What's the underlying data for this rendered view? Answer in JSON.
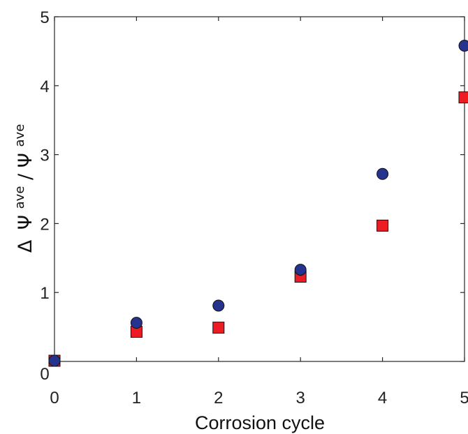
{
  "chart_data": {
    "type": "scatter",
    "x_ticks": [
      "0",
      "1",
      "2",
      "3",
      "4",
      "5"
    ],
    "y_ticks": [
      "0",
      "1",
      "2",
      "3",
      "4",
      "5"
    ],
    "xlim": [
      0,
      5
    ],
    "ylim": [
      0,
      5
    ],
    "grid": false,
    "xlabel": "Corrosion cycle",
    "ylabel": {
      "delta": "Δ",
      "symbol_1": "Ψ",
      "sup_1": "ave",
      "separator": " / ",
      "symbol_2": "Ψ",
      "sup_2": "ave"
    },
    "series": [
      {
        "marker": "circle",
        "color": "#25338f",
        "x": [
          0,
          1,
          2,
          3,
          4,
          5
        ],
        "y": [
          0.01,
          0.56,
          0.81,
          1.33,
          2.72,
          4.58
        ]
      },
      {
        "marker": "square",
        "color": "#ed1c24",
        "x": [
          0,
          1,
          2,
          3,
          4,
          5
        ],
        "y": [
          0.01,
          0.43,
          0.49,
          1.23,
          1.97,
          3.83
        ]
      }
    ]
  }
}
